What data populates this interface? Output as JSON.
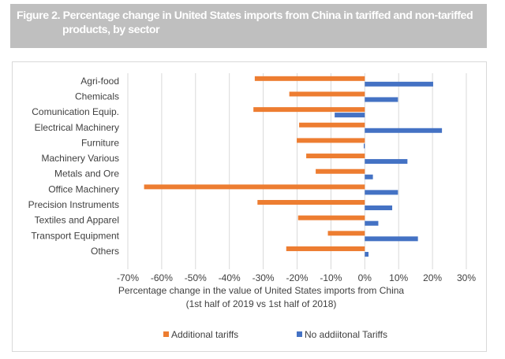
{
  "header": {
    "title_line1": "Figure 2. Percentage change in United States imports from China in tariffed and non-tariffed",
    "title_line2": "products, by sector"
  },
  "chart_data": {
    "type": "bar",
    "orientation": "horizontal",
    "title": "Figure 2. Percentage change in United States imports from China in tariffed and non-tariffed products, by sector",
    "categories": [
      "Agri-food",
      "Chemicals",
      "Comunication Equip.",
      "Electrical Machinery",
      "Furniture",
      "Machinery Various",
      "Metals and Ore",
      "Office Machinery",
      "Precision Instruments",
      "Textiles and Apparel",
      "Transport Equipment",
      "Others"
    ],
    "series": [
      {
        "name": "Additional tariffs",
        "color": "#ed7d31",
        "values": [
          -32.5,
          -22.3,
          -32.9,
          -19.4,
          -20.1,
          -17.3,
          -14.5,
          -65.2,
          -31.7,
          -19.7,
          -10.9,
          -23.2
        ]
      },
      {
        "name": "No addiitonal Tariffs",
        "color": "#4472c4",
        "values": [
          20.2,
          9.8,
          -8.9,
          22.8,
          -0.3,
          12.6,
          2.4,
          9.8,
          8.1,
          4.0,
          15.7,
          1.1
        ]
      }
    ],
    "xlabel_line1": "Percentage change in the value of United States imports from China",
    "xlabel_line2": "(1st half of 2019 vs 1st half of 2018)",
    "ylabel": "",
    "xlim": [
      -70,
      30
    ],
    "xticks": [
      -70,
      -60,
      -50,
      -40,
      -30,
      -20,
      -10,
      0,
      10,
      20,
      30
    ],
    "xtick_labels": [
      "-70%",
      "-60%",
      "-50%",
      "-40%",
      "-30%",
      "-20%",
      "-10%",
      "0%",
      "10%",
      "20%",
      "30%"
    ],
    "grid": true,
    "legend_position": "bottom",
    "gridline_color": "#d9d9d9"
  }
}
